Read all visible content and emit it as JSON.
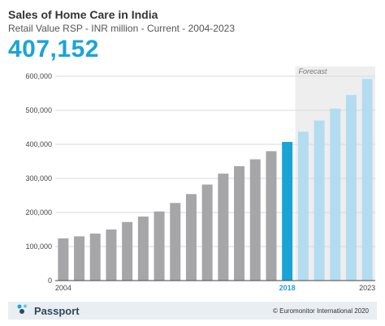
{
  "header": {
    "title": "Sales of Home Care in India",
    "subtitle": "Retail Value RSP - INR million - Current - 2004-2023",
    "headline_value": "407,152"
  },
  "footer": {
    "brand": "Passport",
    "brand_icon": "passport-logo-icon",
    "copyright": "© Euromonitor International 2020"
  },
  "colors": {
    "historic": "#a6a6a8",
    "highlight": "#1aa4d6",
    "forecast": "#b3dcf0",
    "forecast_band": "#eeeeee"
  },
  "chart_data": {
    "type": "bar",
    "categories": [
      "2004",
      "2005",
      "2006",
      "2007",
      "2008",
      "2009",
      "2010",
      "2011",
      "2012",
      "2013",
      "2014",
      "2015",
      "2016",
      "2017",
      "2018",
      "2019",
      "2020",
      "2021",
      "2022",
      "2023"
    ],
    "values": [
      124000,
      130000,
      138000,
      150000,
      172000,
      188000,
      203000,
      228000,
      254000,
      282000,
      314000,
      336000,
      356000,
      380000,
      407152,
      437000,
      470000,
      505000,
      545000,
      592000
    ],
    "tick_labels_x": [
      "2004",
      "2018",
      "2023"
    ],
    "highlight_category": "2018",
    "forecast_from": "2019",
    "forecast_label": "Forecast",
    "ylim": [
      0,
      600000
    ],
    "yticks": [
      "0",
      "100,000",
      "200,000",
      "300,000",
      "400,000",
      "500,000",
      "600,000"
    ],
    "grid": true,
    "xlabel": "",
    "ylabel": ""
  }
}
